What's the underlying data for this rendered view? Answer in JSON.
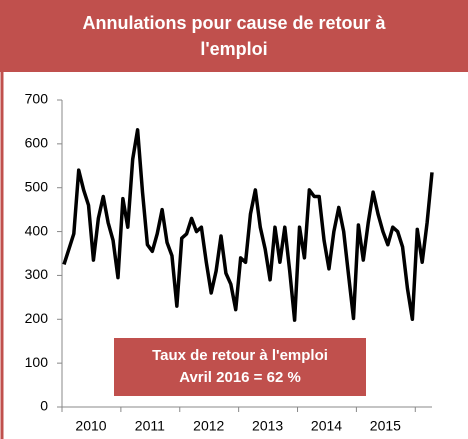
{
  "chart_data": {
    "type": "line",
    "title": "Annulations pour cause de retour à l'emploi",
    "annotation": [
      "Taux de retour à l'emploi",
      "Avril 2016 = 62 %"
    ],
    "categories": [
      null,
      null,
      null,
      null,
      null,
      null,
      "2010",
      null,
      null,
      null,
      null,
      null,
      null,
      null,
      null,
      null,
      null,
      null,
      "2011",
      null,
      null,
      null,
      null,
      null,
      null,
      null,
      null,
      null,
      null,
      null,
      "2012",
      null,
      null,
      null,
      null,
      null,
      null,
      null,
      null,
      null,
      null,
      null,
      "2013",
      null,
      null,
      null,
      null,
      null,
      null,
      null,
      null,
      null,
      null,
      null,
      "2014",
      null,
      null,
      null,
      null,
      null,
      null,
      null,
      null,
      null,
      null,
      null,
      "2015",
      null,
      null,
      null,
      null,
      null,
      null,
      null,
      null,
      null
    ],
    "values": [
      325,
      360,
      395,
      540,
      495,
      460,
      335,
      430,
      480,
      420,
      380,
      295,
      475,
      410,
      565,
      632,
      490,
      370,
      355,
      395,
      450,
      375,
      345,
      230,
      385,
      395,
      430,
      400,
      410,
      330,
      260,
      310,
      390,
      305,
      280,
      222,
      340,
      330,
      440,
      495,
      410,
      360,
      290,
      410,
      330,
      410,
      310,
      198,
      410,
      340,
      495,
      480,
      480,
      380,
      315,
      400,
      455,
      400,
      300,
      202,
      415,
      335,
      420,
      490,
      440,
      400,
      370,
      410,
      400,
      365,
      270,
      200,
      405,
      330,
      420,
      535
    ],
    "color": "#000000",
    "ylim": [
      0,
      700
    ],
    "yticks": [
      0,
      100,
      200,
      300,
      400,
      500,
      600,
      700
    ],
    "grid": false
  }
}
